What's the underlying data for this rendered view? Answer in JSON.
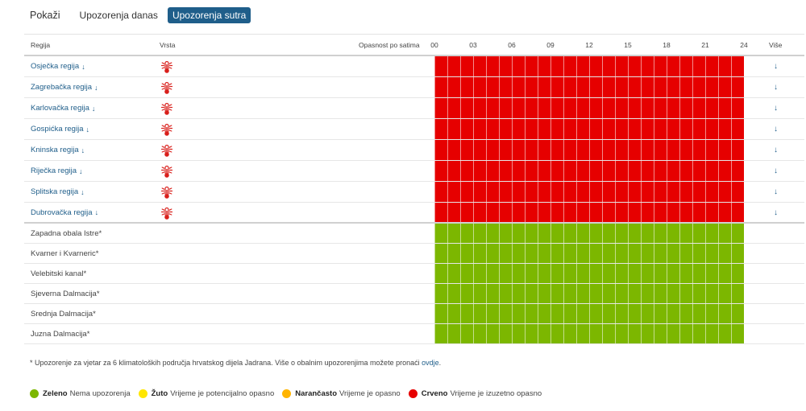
{
  "show": {
    "label": "Pokaži",
    "tabs": [
      {
        "label": "Upozorenja danas",
        "active": false
      },
      {
        "label": "Upozorenja sutra",
        "active": true
      }
    ]
  },
  "table": {
    "headers": {
      "region": "Regija",
      "type": "Vrsta",
      "hazard": "Opasnost po satima",
      "more": "Više"
    },
    "hour_ticks": [
      "00",
      "03",
      "06",
      "09",
      "12",
      "15",
      "18",
      "21",
      "24"
    ],
    "land_rows": [
      {
        "name": "Osječka regija",
        "arrow": "↓",
        "type_icon": "heat-thermometer-icon",
        "level": "red",
        "more": "↓"
      },
      {
        "name": "Zagrebačka regija",
        "arrow": "↓",
        "type_icon": "heat-thermometer-icon",
        "level": "red",
        "more": "↓"
      },
      {
        "name": "Karlovačka regija",
        "arrow": "↓",
        "type_icon": "heat-thermometer-icon",
        "level": "red",
        "more": "↓"
      },
      {
        "name": "Gospićka regija",
        "arrow": "↓",
        "type_icon": "heat-thermometer-icon",
        "level": "red",
        "more": "↓"
      },
      {
        "name": "Kninska regija",
        "arrow": "↓",
        "type_icon": "heat-thermometer-icon",
        "level": "red",
        "more": "↓"
      },
      {
        "name": "Riječka regija",
        "arrow": "↓",
        "type_icon": "heat-thermometer-icon",
        "level": "red",
        "more": "↓"
      },
      {
        "name": "Splitska regija",
        "arrow": "↓",
        "type_icon": "heat-thermometer-icon",
        "level": "red",
        "more": "↓"
      },
      {
        "name": "Dubrovačka regija",
        "arrow": "↓",
        "type_icon": "heat-thermometer-icon",
        "level": "red",
        "more": "↓"
      }
    ],
    "sea_rows": [
      {
        "name": "Zapadna obala Istre*",
        "level": "green"
      },
      {
        "name": "Kvarner i Kvarneric*",
        "level": "green"
      },
      {
        "name": "Velebitski kanal*",
        "level": "green"
      },
      {
        "name": "Sjeverna Dalmacija*",
        "level": "green"
      },
      {
        "name": "Srednja Dalmacija*",
        "level": "green"
      },
      {
        "name": "Juzna Dalmacija*",
        "level": "green"
      }
    ]
  },
  "note": {
    "text": "* Upozorenje za vjetar za 6 klimatoloških područja hrvatskog dijela Jadrana. Više o obalnim upozorenjima možete pronaći ",
    "link": "ovdje",
    "end": "."
  },
  "legend": [
    {
      "color": "#7cb700",
      "label": "Zeleno",
      "desc": "Nema upozorenja"
    },
    {
      "color": "#ffe600",
      "label": "Žuto",
      "desc": "Vrijeme je potencijalno opasno"
    },
    {
      "color": "#ffb400",
      "label": "Narančasto",
      "desc": "Vrijeme je opasno"
    },
    {
      "color": "#e60000",
      "label": "Crveno",
      "desc": "Vrijeme je izuzetno opasno"
    }
  ],
  "colors": {
    "accent": "#1f5e8a",
    "red": "#e60000",
    "green": "#7cb700"
  }
}
